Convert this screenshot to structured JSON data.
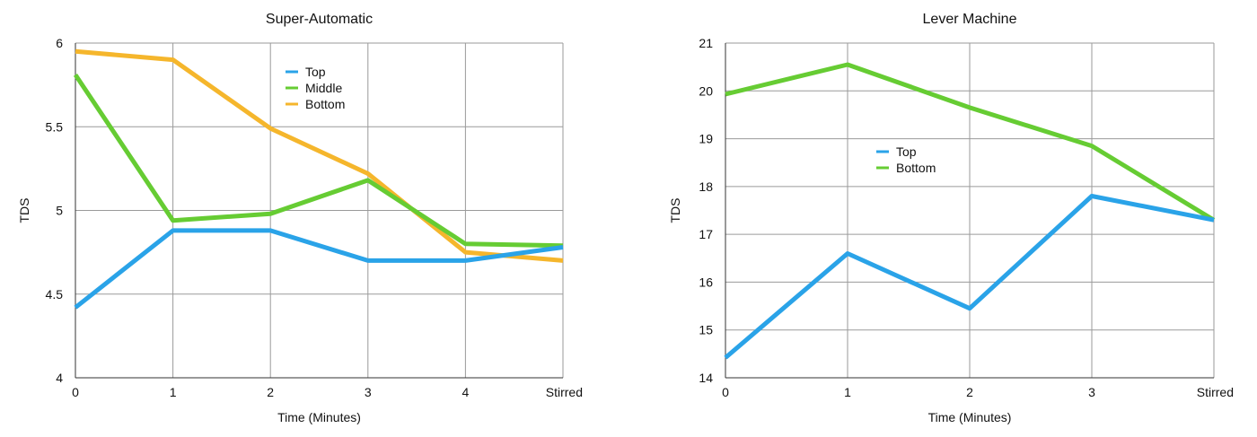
{
  "chart_data": [
    {
      "type": "line",
      "title": "Super-Automatic",
      "xlabel": "Time (Minutes)",
      "ylabel": "TDS",
      "categories": [
        "0",
        "1",
        "2",
        "3",
        "4",
        "Stirred"
      ],
      "ylim": [
        4,
        6
      ],
      "yticks": [
        "4",
        "4.5",
        "5",
        "5.5",
        "6"
      ],
      "grid": true,
      "legend_position": "top-center",
      "series": [
        {
          "name": "Top",
          "color": "#2aa3e8",
          "values": [
            4.42,
            4.88,
            4.88,
            4.7,
            4.7,
            4.78
          ]
        },
        {
          "name": "Middle",
          "color": "#66cc33",
          "values": [
            5.81,
            4.94,
            4.98,
            5.18,
            4.8,
            4.79
          ]
        },
        {
          "name": "Bottom",
          "color": "#f5b62c",
          "values": [
            5.95,
            5.9,
            5.49,
            5.22,
            4.75,
            4.7
          ]
        }
      ]
    },
    {
      "type": "line",
      "title": "Lever Machine",
      "xlabel": "Time (Minutes)",
      "ylabel": "TDS",
      "categories": [
        "0",
        "1",
        "2",
        "3",
        "Stirred"
      ],
      "ylim": [
        14,
        21
      ],
      "yticks": [
        "14",
        "15",
        "16",
        "17",
        "18",
        "19",
        "20",
        "21"
      ],
      "grid": true,
      "legend_position": "center-left",
      "series": [
        {
          "name": "Top",
          "color": "#2aa3e8",
          "values": [
            14.42,
            16.6,
            15.45,
            17.8,
            17.3
          ]
        },
        {
          "name": "Bottom",
          "color": "#66cc33",
          "values": [
            19.93,
            20.55,
            19.65,
            18.85,
            17.3
          ]
        }
      ]
    }
  ]
}
